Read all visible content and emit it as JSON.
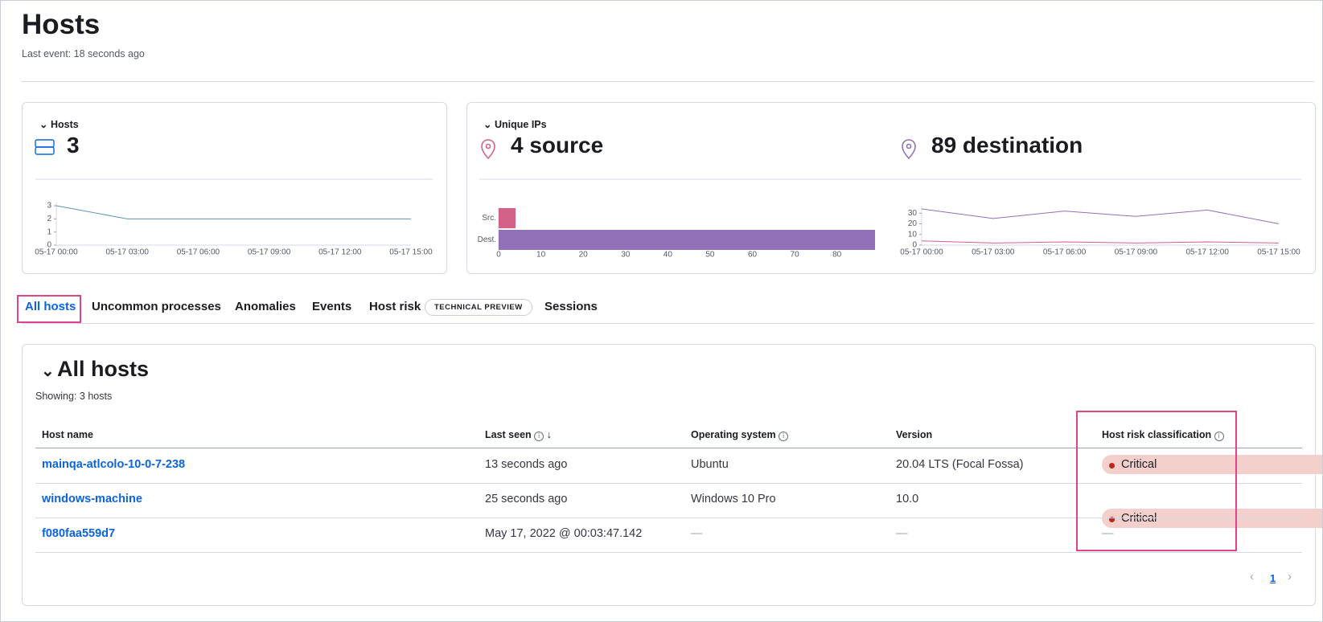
{
  "header": {
    "title": "Hosts",
    "subtitle": "Last event: 18 seconds ago"
  },
  "hosts_panel": {
    "title": "Hosts",
    "value": "3"
  },
  "ips_panel": {
    "title": "Unique IPs",
    "source": "4 source",
    "destination": "89 destination"
  },
  "chart_data": [
    {
      "type": "line",
      "x": [
        "05-17 00:00",
        "05-17 03:00",
        "05-17 06:00",
        "05-17 09:00",
        "05-17 12:00",
        "05-17 15:00"
      ],
      "values": [
        3,
        2,
        2,
        2,
        2,
        2
      ],
      "color": "#6092c0",
      "ylim": [
        0,
        3
      ],
      "yticks": [
        0,
        1,
        2,
        3
      ]
    },
    {
      "type": "bar",
      "orientation": "horizontal",
      "categories": [
        "Src.",
        "Dest."
      ],
      "values": [
        4,
        89
      ],
      "colors": [
        "#d36086",
        "#9170b8"
      ],
      "xlim": [
        0,
        89
      ],
      "xticks": [
        0,
        10,
        20,
        30,
        40,
        50,
        60,
        70,
        80
      ]
    },
    {
      "type": "line",
      "x": [
        "05-17 00:00",
        "05-17 03:00",
        "05-17 06:00",
        "05-17 09:00",
        "05-17 12:00",
        "05-17 15:00"
      ],
      "series": [
        {
          "color": "#9170b8",
          "values": [
            34,
            25,
            32,
            27,
            33,
            20
          ]
        },
        {
          "color": "#d36086",
          "values": [
            4,
            2,
            3,
            2,
            3,
            2
          ]
        }
      ],
      "ylim": [
        0,
        34
      ],
      "yticks": [
        0,
        10,
        20,
        30
      ]
    }
  ],
  "tabs": [
    "All hosts",
    "Uncommon processes",
    "Anomalies",
    "Events",
    "Host risk",
    "Sessions"
  ],
  "tab_badge": "TECHNICAL PREVIEW",
  "table": {
    "title": "All hosts",
    "showing": "Showing: 3 hosts",
    "columns": [
      "Host name",
      "Last seen",
      "Operating system",
      "Version",
      "Host risk classification"
    ],
    "rows": [
      [
        "mainqa-atlcolo-10-0-7-238",
        "13 seconds ago",
        "Ubuntu",
        "20.04 LTS (Focal Fossa)",
        "Critical"
      ],
      [
        "windows-machine",
        "25 seconds ago",
        "Windows 10 Pro",
        "10.0",
        "Critical"
      ],
      [
        "f080faa559d7",
        "May 17, 2022 @ 00:03:47.142",
        "—",
        "—",
        "—"
      ]
    ]
  },
  "pagination": {
    "page": "1"
  }
}
